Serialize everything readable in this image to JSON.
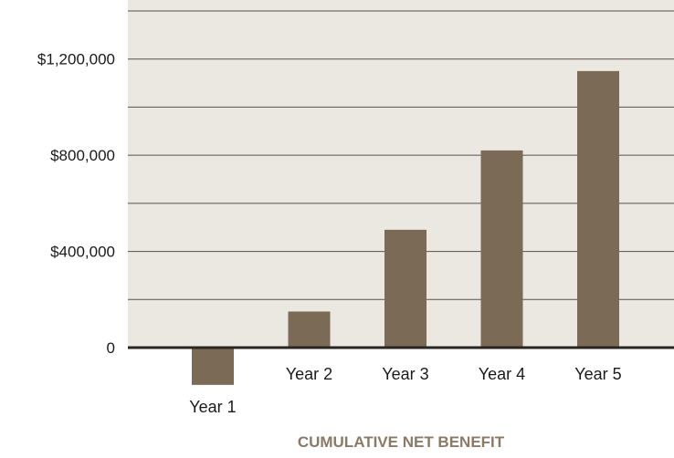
{
  "colors": {
    "plot_background": "#ebe8e2",
    "bar_fill": "#7a6a56",
    "grid_line": "#5a5048",
    "axis_line": "#2b2520",
    "tick_text": "#1a1a1a",
    "title_text": "#8a7a66"
  },
  "chart_data": {
    "type": "bar",
    "title": "CUMULATIVE NET BENEFIT",
    "xlabel": "",
    "ylabel": "",
    "categories": [
      "Year 1",
      "Year 2",
      "Year 3",
      "Year 4",
      "Year 5"
    ],
    "values": [
      -155000,
      150000,
      490000,
      820000,
      1150000
    ],
    "ylim": [
      0,
      1400000
    ],
    "y_ticks": [
      0,
      400000,
      800000,
      1200000
    ],
    "y_tick_labels": [
      "0",
      "$400,000",
      "$800,000",
      "$1,200,000"
    ],
    "gridlines": [
      200000,
      400000,
      600000,
      800000,
      1000000,
      1200000,
      1400000
    ],
    "grid": true,
    "legend": "none"
  }
}
